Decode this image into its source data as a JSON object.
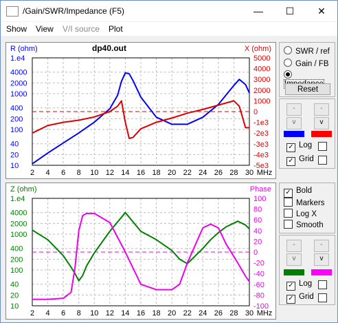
{
  "window": {
    "title": "/Gain/SWR/Impedance (F5)",
    "min": "—",
    "max": "☐",
    "close": "✕"
  },
  "menu": [
    "Show",
    "View",
    "V/I source",
    "Plot"
  ],
  "top_plot": {
    "title": "dp40.out",
    "left_label": "R (ohm)",
    "right_label": "X (ohm)",
    "left_ticks": [
      "1.e4",
      "4000",
      "2000",
      "1000",
      "400",
      "200",
      "100",
      "40",
      "20",
      "10"
    ],
    "right_ticks": [
      "5000",
      "4000",
      "3000",
      "2000",
      "1000",
      "0",
      "-1e3",
      "-2e3",
      "-3e3",
      "-4e3",
      "-5e3"
    ],
    "x_ticks": [
      "2",
      "4",
      "6",
      "8",
      "10",
      "12",
      "14",
      "16",
      "18",
      "20",
      "22",
      "24",
      "26",
      "28",
      "30"
    ],
    "x_unit": "MHz"
  },
  "bottom_plot": {
    "left_label": "Z (ohm)",
    "right_label": "Phase",
    "left_ticks": [
      "1.e4",
      "4000",
      "2000",
      "1000",
      "400",
      "200",
      "100",
      "40",
      "20",
      "10"
    ],
    "right_ticks": [
      "100",
      "80",
      "60",
      "40",
      "20",
      "0",
      "-20",
      "-40",
      "-60",
      "-80",
      "-100"
    ],
    "x_ticks": [
      "2",
      "4",
      "6",
      "8",
      "10",
      "12",
      "14",
      "16",
      "18",
      "20",
      "22",
      "24",
      "26",
      "28",
      "30"
    ],
    "x_unit": "MHz"
  },
  "modes": [
    {
      "label": "SWR / ref",
      "selected": false
    },
    {
      "label": "Gain / FB",
      "selected": false
    },
    {
      "label": "Impedance",
      "selected": true
    }
  ],
  "reset_label": "Reset",
  "top_controls": {
    "log_label": "Log",
    "log_checked": true,
    "grid_label": "Grid",
    "grid_checked": true,
    "color1": "#0000ff",
    "color2": "#ff0000"
  },
  "options": [
    {
      "label": "Bold",
      "checked": true
    },
    {
      "label": "Markers",
      "checked": false
    },
    {
      "label": "Log X",
      "checked": false
    },
    {
      "label": "Smooth",
      "checked": false
    }
  ],
  "bottom_controls": {
    "log_label": "Log",
    "log_checked": true,
    "grid_label": "Grid",
    "grid_checked": true,
    "color1": "#008000",
    "color2": "#ff00ff"
  },
  "colors": {
    "r": "#0000ff",
    "x": "#dd0000",
    "z": "#008000",
    "phase": "#ee00ee"
  },
  "chart_data": [
    {
      "type": "line",
      "title": "dp40.out",
      "xlabel": "MHz",
      "x": [
        2,
        4,
        6,
        8,
        10,
        12,
        13,
        13.5,
        14,
        14.5,
        15,
        16,
        18,
        20,
        22,
        24,
        26,
        28,
        28.7,
        29.5,
        30
      ],
      "series": [
        {
          "name": "R (ohm)",
          "axis": "left-log",
          "ylim": [
            10,
            10000
          ],
          "values": [
            11,
            22,
            42,
            80,
            160,
            380,
            900,
            2200,
            3800,
            3600,
            2300,
            800,
            220,
            140,
            140,
            220,
            500,
            1700,
            2500,
            1800,
            1050
          ]
        },
        {
          "name": "X (ohm)",
          "axis": "right",
          "ylim": [
            -5000,
            5000
          ],
          "values": [
            -2000,
            -1300,
            -1000,
            -800,
            -500,
            0,
            500,
            1000,
            -1000,
            -2500,
            -2400,
            -1600,
            -1000,
            -600,
            -150,
            200,
            600,
            1000,
            500,
            -1500,
            -1500
          ]
        }
      ]
    },
    {
      "type": "line",
      "xlabel": "MHz",
      "x": [
        2,
        4,
        6,
        7,
        7.5,
        8,
        8.5,
        9,
        10,
        12,
        14,
        16,
        18,
        20,
        21,
        22,
        24,
        25,
        26,
        27,
        28.5,
        29.5,
        30
      ],
      "series": [
        {
          "name": "Z (ohm)",
          "axis": "left-log",
          "ylim": [
            10,
            10000
          ],
          "values": [
            1300,
            700,
            250,
            120,
            80,
            50,
            70,
            130,
            300,
            1200,
            4000,
            1200,
            700,
            350,
            200,
            150,
            400,
            700,
            1100,
            1600,
            2300,
            1800,
            1400
          ]
        },
        {
          "name": "Phase",
          "axis": "right",
          "ylim": [
            -100,
            100
          ],
          "values": [
            -88,
            -88,
            -86,
            -75,
            -30,
            40,
            68,
            72,
            72,
            55,
            0,
            -60,
            -70,
            -70,
            -60,
            -20,
            45,
            52,
            45,
            15,
            -20,
            -45,
            -55
          ]
        }
      ]
    }
  ]
}
